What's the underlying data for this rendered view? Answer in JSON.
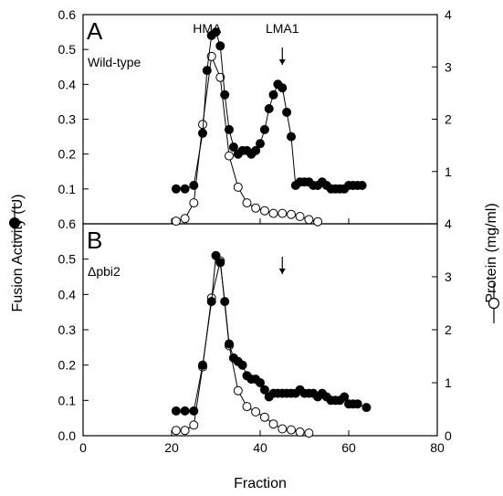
{
  "chart_data": {
    "type": "scatter",
    "x_label": "Fraction",
    "y_left_label": "Fusion Activity (U)",
    "y_right_label": "Protein (mg/ml)",
    "x_range": [
      0,
      80
    ],
    "x_ticks": [
      "0",
      "20",
      "40",
      "60",
      "80"
    ],
    "y_left_range": [
      0,
      0.6
    ],
    "y_right_range": [
      0,
      4
    ],
    "y_left_ticks_top": [
      "0.1",
      "0.2",
      "0.3",
      "0.4",
      "0.5",
      "0.6"
    ],
    "y_left_ticks_bottom": [
      "0.0",
      "0.1",
      "0.2",
      "0.3",
      "0.4",
      "0.5",
      "0.6"
    ],
    "y_right_ticks_top": [
      "1",
      "2",
      "3",
      "4"
    ],
    "y_right_ticks_bottom": [
      "0",
      "1",
      "2",
      "3",
      "4"
    ],
    "legend": "filled circle = fusion activity (left axis); open circle = protein (right axis)",
    "panels": [
      {
        "letter": "A",
        "subtitle": "Wild-type",
        "annotations": [
          {
            "text": "HMA",
            "x": 28
          },
          {
            "text": "LMA1",
            "x": 45,
            "arrow": true
          }
        ],
        "series": [
          {
            "name": "Fusion Activity",
            "axis": "left",
            "marker": "filled",
            "x": [
              21,
              23,
              25,
              27,
              28,
              29,
              30,
              31,
              32,
              33,
              34,
              35,
              36,
              37,
              38,
              39,
              40,
              41,
              42,
              43,
              44,
              45,
              46,
              47,
              48,
              49,
              50,
              51,
              52,
              53,
              54,
              55,
              56,
              57,
              58,
              59,
              60,
              61,
              62,
              63
            ],
            "y": [
              0.1,
              0.1,
              0.11,
              0.26,
              0.44,
              0.54,
              0.55,
              0.51,
              0.37,
              0.27,
              0.22,
              0.2,
              0.21,
              0.21,
              0.2,
              0.21,
              0.23,
              0.27,
              0.33,
              0.37,
              0.4,
              0.39,
              0.32,
              0.25,
              0.11,
              0.12,
              0.12,
              0.12,
              0.11,
              0.11,
              0.12,
              0.11,
              0.1,
              0.1,
              0.1,
              0.1,
              0.11,
              0.11,
              0.11,
              0.11
            ]
          },
          {
            "name": "Protein",
            "axis": "right",
            "marker": "open",
            "x": [
              21,
              23,
              25,
              27,
              29,
              31,
              33,
              35,
              37,
              39,
              41,
              43,
              45,
              47,
              49,
              51,
              53
            ],
            "y": [
              0.05,
              0.1,
              0.4,
              1.9,
              3.2,
              2.8,
              1.3,
              0.7,
              0.4,
              0.3,
              0.25,
              0.2,
              0.2,
              0.18,
              0.14,
              0.08,
              0.04
            ]
          }
        ]
      },
      {
        "letter": "B",
        "subtitle": "Δpbi2",
        "annotations": [
          {
            "text": "",
            "x": 45,
            "arrow": true
          }
        ],
        "series": [
          {
            "name": "Fusion Activity",
            "axis": "left",
            "marker": "filled",
            "x": [
              21,
              23,
              25,
              27,
              29,
              30,
              31,
              32,
              33,
              34,
              35,
              36,
              37,
              38,
              39,
              40,
              41,
              42,
              43,
              44,
              45,
              46,
              47,
              48,
              49,
              50,
              51,
              52,
              53,
              54,
              55,
              56,
              57,
              58,
              59,
              60,
              61,
              62,
              64
            ],
            "y": [
              0.07,
              0.07,
              0.07,
              0.2,
              0.38,
              0.51,
              0.49,
              0.38,
              0.26,
              0.22,
              0.21,
              0.2,
              0.17,
              0.16,
              0.16,
              0.15,
              0.13,
              0.11,
              0.12,
              0.12,
              0.12,
              0.12,
              0.12,
              0.12,
              0.13,
              0.12,
              0.12,
              0.12,
              0.11,
              0.12,
              0.11,
              0.1,
              0.1,
              0.1,
              0.11,
              0.09,
              0.09,
              0.09,
              0.08
            ]
          },
          {
            "name": "Protein",
            "axis": "right",
            "marker": "open",
            "x": [
              21,
              23,
              25,
              27,
              29,
              31,
              33,
              35,
              37,
              39,
              41,
              43,
              45,
              47,
              49,
              51
            ],
            "y": [
              0.1,
              0.1,
              0.2,
              1.3,
              2.6,
              3.3,
              1.7,
              0.85,
              0.55,
              0.45,
              0.35,
              0.22,
              0.13,
              0.11,
              0.07,
              0.05
            ]
          }
        ]
      }
    ]
  }
}
